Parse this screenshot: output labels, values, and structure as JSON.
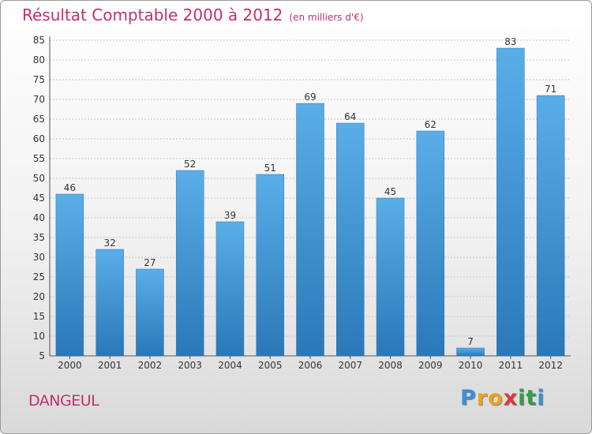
{
  "header": {
    "title": "Résultat Comptable 2000 à 2012",
    "subtitle": "(en milliers d'€)"
  },
  "footer": {
    "town": "DANGEUL",
    "logo": {
      "letters": [
        "P",
        "r",
        "o",
        "x",
        "i",
        "t",
        "i"
      ],
      "colors": [
        "#3d8fd1",
        "#e9a21c",
        "#e9a21c",
        "#d83b3b",
        "#2f9d4a",
        "#2f9d4a",
        "#3d8fd1"
      ]
    }
  },
  "colors": {
    "bar_top": "#5aaee8",
    "bar_bottom": "#2a78b8",
    "accent": "#c0306e"
  },
  "chart_data": {
    "type": "bar",
    "title": "Résultat Comptable 2000 à 2012",
    "subtitle": "(en milliers d'€)",
    "categories": [
      "2000",
      "2001",
      "2002",
      "2003",
      "2004",
      "2005",
      "2006",
      "2007",
      "2008",
      "2009",
      "2010",
      "2011",
      "2012"
    ],
    "values": [
      46,
      32,
      27,
      52,
      39,
      51,
      69,
      64,
      45,
      62,
      7,
      83,
      71
    ],
    "ylim": [
      5,
      85
    ],
    "yticks": [
      5,
      10,
      15,
      20,
      25,
      30,
      35,
      40,
      45,
      50,
      55,
      60,
      65,
      70,
      75,
      80,
      85
    ],
    "grid": true,
    "xlabel": "",
    "ylabel": ""
  }
}
